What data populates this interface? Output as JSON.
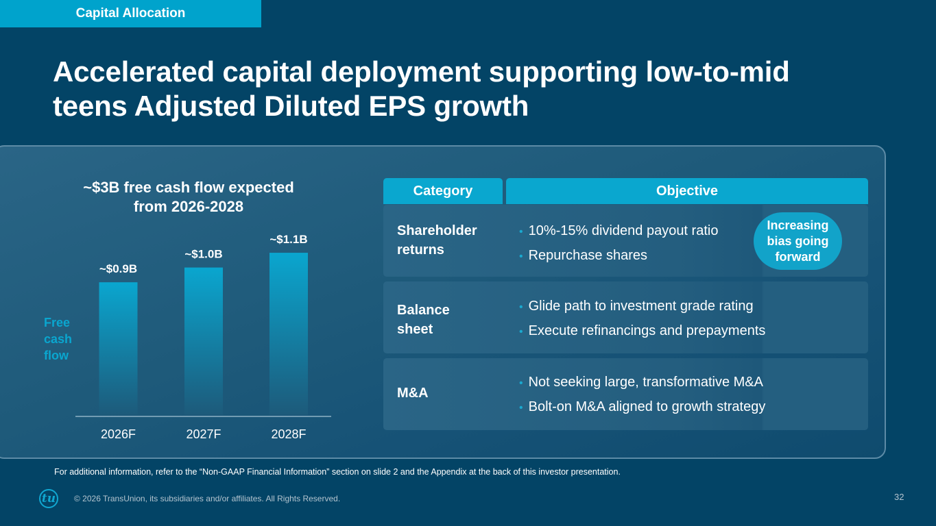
{
  "section_tab": "Capital Allocation",
  "page_title": "Accelerated capital deployment supporting low-to-mid teens Adjusted Diluted EPS growth",
  "colors": {
    "background": "#034466",
    "accent": "#00a3cc",
    "bar_top": "#0aa6cf",
    "bar_bottom": "#1d5a7a",
    "axis_line": "#8fb3c6"
  },
  "chart_data": {
    "type": "bar",
    "title": "~$3B free cash flow expected from 2026-2028",
    "title_lines": [
      "~$3B free cash flow expected",
      "from 2026-2028"
    ],
    "ylabel": "Free cash flow",
    "ylabel_lines": [
      "Free",
      "cash",
      "flow"
    ],
    "xlabel": "",
    "categories": [
      "2026F",
      "2027F",
      "2028F"
    ],
    "values": [
      0.9,
      1.0,
      1.1
    ],
    "value_labels": [
      "~$0.9B",
      "~$1.0B",
      "~$1.1B"
    ],
    "units": "USD billions",
    "ylim": [
      0,
      1.3
    ],
    "grid": false,
    "legend": "none"
  },
  "table": {
    "headers": {
      "category": "Category",
      "objective": "Objective"
    },
    "rows": [
      {
        "category_lines": [
          "Shareholder",
          "returns"
        ],
        "bullets": [
          "10%-15% dividend payout ratio",
          "Repurchase shares"
        ]
      },
      {
        "category_lines": [
          "Balance",
          "sheet"
        ],
        "bullets": [
          "Glide path to investment grade rating",
          "Execute refinancings and prepayments"
        ]
      },
      {
        "category_lines": [
          "M&A"
        ],
        "bullets": [
          "Not seeking large, transformative M&A",
          "Bolt-on M&A aligned to growth strategy"
        ]
      }
    ],
    "callout_lines": [
      "Increasing",
      "bias going",
      "forward"
    ],
    "bullet_glyph": "•"
  },
  "footnote": "For additional information, refer to the “Non-GAAP Financial Information” section on slide 2 and the Appendix at the back of this investor presentation.",
  "copyright": "© 2026 TransUnion, its subsidiaries and/or affiliates. All Rights Reserved.",
  "logo_text": "tu",
  "page_number": "32"
}
